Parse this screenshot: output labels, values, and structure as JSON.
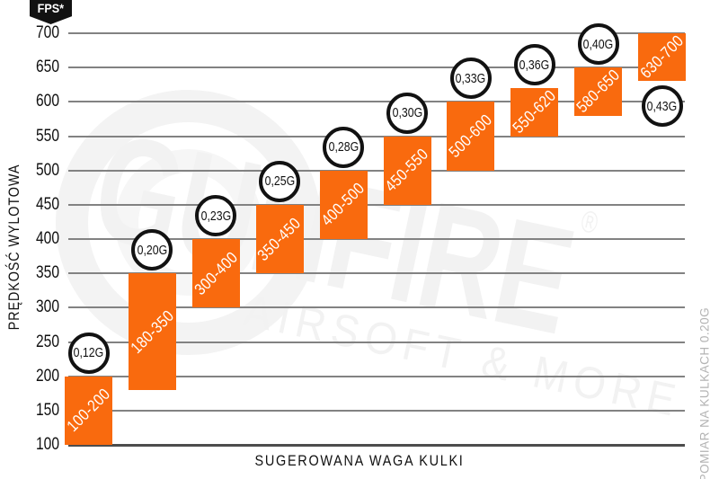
{
  "chart_data": {
    "type": "bar",
    "subtype": "vertical-floating-range-bars",
    "title": "",
    "xlabel": "SUGEROWANA WAGA KULKI",
    "ylabel": "PRĘDKOŚĆ WYLOTOWA",
    "y_unit_badge": "FPS*",
    "footnote": "*POMIAR NA KULKACH 0.20G",
    "ylim": [
      100,
      700
    ],
    "ytick_step": 50,
    "grid": "horizontal-only",
    "legend": "none",
    "bars": [
      {
        "weight": "0,12G",
        "fps_min": 100,
        "fps_max": 200,
        "range_label": "100-200"
      },
      {
        "weight": "0,20G",
        "fps_min": 180,
        "fps_max": 350,
        "range_label": "180-350"
      },
      {
        "weight": "0,23G",
        "fps_min": 300,
        "fps_max": 400,
        "range_label": "300-400"
      },
      {
        "weight": "0,25G",
        "fps_min": 350,
        "fps_max": 450,
        "range_label": "350-450"
      },
      {
        "weight": "0,28G",
        "fps_min": 400,
        "fps_max": 500,
        "range_label": "400-500"
      },
      {
        "weight": "0,30G",
        "fps_min": 450,
        "fps_max": 550,
        "range_label": "450-550"
      },
      {
        "weight": "0,33G",
        "fps_min": 500,
        "fps_max": 600,
        "range_label": "500-600"
      },
      {
        "weight": "0,36G",
        "fps_min": 550,
        "fps_max": 620,
        "range_label": "550-620"
      },
      {
        "weight": "0,40G",
        "fps_min": 580,
        "fps_max": 650,
        "range_label": "580-650"
      },
      {
        "weight": "0,43G",
        "fps_min": 630,
        "fps_max": 700,
        "range_label": "630-700"
      }
    ]
  },
  "watermark": {
    "brand": "GUNFIRE",
    "registered_mark": "®",
    "tagline": "AIRSOFT & MORE"
  },
  "colors": {
    "bar_fill": "#F96A0E",
    "bar_label_text": "#FFFFFF",
    "gridline": "#828282",
    "baseline": "#4D4D4D",
    "tick_text": "#111111",
    "circle_border": "#121212",
    "circle_fill": "#FFFFFF",
    "circle_text": "#111111",
    "badge_bg": "#121212",
    "badge_text": "#FFFFFF",
    "footnote_text": "#B3B3B3",
    "watermark_tint": "#F2F2F2"
  }
}
